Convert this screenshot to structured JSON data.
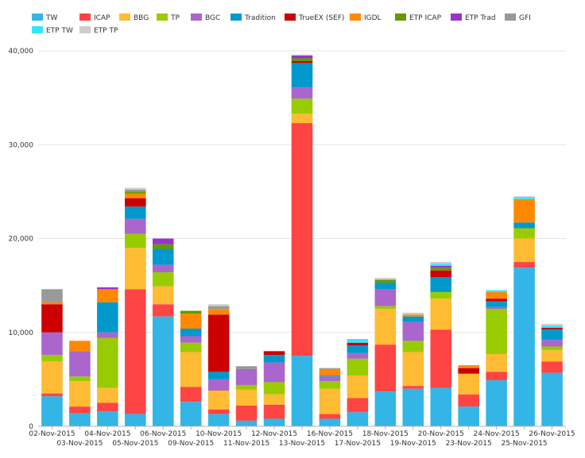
{
  "chart_data": {
    "type": "bar",
    "stacked": true,
    "title": "",
    "xlabel": "",
    "ylabel": "",
    "grid": "horizontal",
    "legend_position": "top",
    "ylim": [
      0,
      40000
    ],
    "y_ticks": [
      0,
      10000,
      20000,
      30000,
      40000
    ],
    "y_tick_labels": [
      "0",
      "10,000",
      "20,000",
      "30,000",
      "40,000"
    ],
    "categories": [
      "02-Nov-2015",
      "03-Nov-2015",
      "04-Nov-2015",
      "05-Nov-2015",
      "06-Nov-2015",
      "09-Nov-2015",
      "10-Nov-2015",
      "11-Nov-2015",
      "12-Nov-2015",
      "13-Nov-2015",
      "16-Nov-2015",
      "17-Nov-2015",
      "18-Nov-2015",
      "19-Nov-2015",
      "20-Nov-2015",
      "23-Nov-2015",
      "24-Nov-2015",
      "25-Nov-2015",
      "26-Nov-2015"
    ],
    "series": [
      {
        "name": "TW",
        "color": "#33b5e5",
        "values": [
          3200,
          1400,
          1600,
          1300,
          11700,
          2600,
          1300,
          600,
          800,
          7500,
          800,
          1500,
          3700,
          4000,
          4100,
          2100,
          4900,
          16900,
          5700
        ]
      },
      {
        "name": "ICAP",
        "color": "#ff4444",
        "values": [
          300,
          700,
          900,
          13300,
          1300,
          1600,
          500,
          1600,
          1500,
          24800,
          500,
          1500,
          5000,
          300,
          6200,
          1300,
          900,
          600,
          1200
        ]
      },
      {
        "name": "BBG",
        "color": "#ffbb33",
        "values": [
          3400,
          2700,
          1600,
          4400,
          1900,
          3700,
          2000,
          1700,
          1100,
          1000,
          2700,
          2400,
          3800,
          3600,
          3300,
          2200,
          1900,
          2500,
          1200
        ]
      },
      {
        "name": "TP",
        "color": "#99cc00",
        "values": [
          700,
          500,
          5300,
          1500,
          1500,
          1000,
          0,
          500,
          1300,
          1600,
          800,
          1800,
          300,
          1200,
          700,
          0,
          4800,
          1100,
          400
        ]
      },
      {
        "name": "BGC",
        "color": "#aa66cc",
        "values": [
          2400,
          2700,
          600,
          1600,
          800,
          700,
          1200,
          1700,
          2100,
          1200,
          500,
          600,
          1800,
          2000,
          0,
          0,
          200,
          0,
          700
        ]
      },
      {
        "name": "Tradition",
        "color": "#0099cc",
        "values": [
          0,
          0,
          3200,
          1300,
          1700,
          800,
          800,
          0,
          800,
          2600,
          100,
          800,
          700,
          600,
          1600,
          0,
          600,
          600,
          1100
        ]
      },
      {
        "name": "TrueEX (SEF)",
        "color": "#cc0000",
        "values": [
          3000,
          0,
          0,
          900,
          0,
          0,
          6100,
          0,
          400,
          200,
          0,
          300,
          0,
          0,
          700,
          600,
          300,
          0,
          200
        ]
      },
      {
        "name": "IGDL",
        "color": "#ff8800",
        "values": [
          200,
          1100,
          1400,
          500,
          0,
          1600,
          600,
          0,
          0,
          0,
          700,
          0,
          0,
          200,
          0,
          300,
          700,
          2500,
          0
        ]
      },
      {
        "name": "ETP ICAP",
        "color": "#669900",
        "values": [
          0,
          0,
          0,
          200,
          500,
          300,
          0,
          0,
          0,
          300,
          0,
          0,
          300,
          0,
          300,
          0,
          0,
          0,
          0
        ]
      },
      {
        "name": "ETP Trad",
        "color": "#9933cc",
        "values": [
          0,
          0,
          200,
          0,
          600,
          0,
          0,
          0,
          0,
          300,
          0,
          0,
          0,
          0,
          200,
          0,
          0,
          0,
          0
        ]
      },
      {
        "name": "GFI",
        "color": "#999999",
        "values": [
          1400,
          0,
          0,
          200,
          0,
          0,
          300,
          300,
          0,
          0,
          100,
          0,
          0,
          0,
          0,
          0,
          0,
          0,
          0
        ]
      },
      {
        "name": "ETP TW",
        "color": "#33e5ff",
        "values": [
          0,
          0,
          0,
          0,
          0,
          0,
          0,
          0,
          0,
          0,
          0,
          400,
          0,
          0,
          200,
          0,
          200,
          200,
          200
        ]
      },
      {
        "name": "ETP TP",
        "color": "#cccccc",
        "values": [
          0,
          0,
          0,
          200,
          0,
          0,
          200,
          0,
          0,
          100,
          0,
          0,
          200,
          200,
          200,
          0,
          0,
          100,
          200
        ]
      }
    ]
  }
}
